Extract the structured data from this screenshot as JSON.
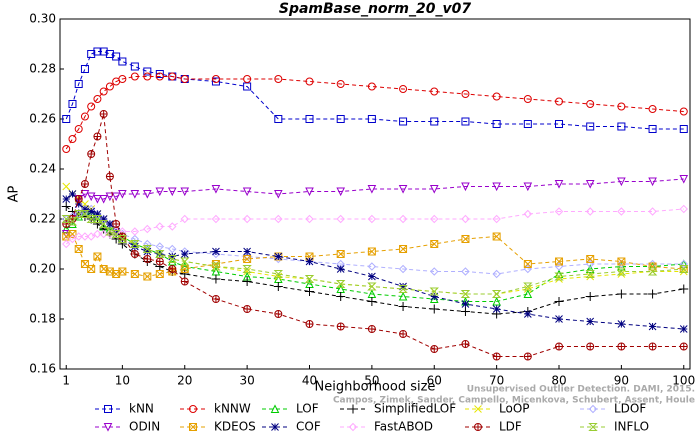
{
  "chart_data": {
    "type": "line",
    "title": "SpamBase_norm_20_v07",
    "xlabel": "Neighborhood size",
    "ylabel": "AP",
    "annotations": [
      "Unsupervised Outlier Detection. DAMI, 2015.",
      "Campos, Zimek, Sander, Campello, Micenkova, Schubert, Assent, Houle"
    ],
    "xlim": [
      0,
      101
    ],
    "ylim": [
      0.16,
      0.3
    ],
    "xticks": [
      1,
      10,
      20,
      30,
      40,
      50,
      60,
      70,
      80,
      90,
      100
    ],
    "yticks": [
      {
        "value": 0.16,
        "label": "0.16"
      },
      {
        "value": 0.18,
        "label": "0.18"
      },
      {
        "value": 0.2,
        "label": "0.20"
      },
      {
        "value": 0.22,
        "label": "0.22"
      },
      {
        "value": 0.24,
        "label": "0.24"
      },
      {
        "value": 0.26,
        "label": "0.26"
      },
      {
        "value": 0.28,
        "label": "0.28"
      },
      {
        "value": 0.3,
        "label": "0.30"
      }
    ],
    "legend": "bottom",
    "x": [
      1,
      2,
      3,
      4,
      5,
      6,
      7,
      8,
      9,
      10,
      12,
      14,
      16,
      18,
      20,
      25,
      30,
      35,
      40,
      45,
      50,
      55,
      60,
      65,
      70,
      75,
      80,
      85,
      90,
      95,
      100
    ],
    "series": [
      {
        "name": "kNN",
        "color": "#0000cc",
        "marker": "square",
        "values": [
          0.26,
          0.266,
          0.274,
          0.28,
          0.286,
          0.287,
          0.287,
          0.286,
          0.285,
          0.283,
          0.281,
          0.279,
          0.278,
          0.277,
          0.276,
          0.275,
          0.273,
          0.26,
          0.26,
          0.26,
          0.26,
          0.259,
          0.259,
          0.259,
          0.258,
          0.258,
          0.258,
          0.257,
          0.257,
          0.256,
          0.256
        ]
      },
      {
        "name": "kNNW",
        "color": "#dd0000",
        "marker": "circle",
        "values": [
          0.248,
          0.252,
          0.256,
          0.261,
          0.265,
          0.268,
          0.271,
          0.273,
          0.275,
          0.276,
          0.277,
          0.277,
          0.277,
          0.277,
          0.276,
          0.276,
          0.276,
          0.276,
          0.275,
          0.274,
          0.273,
          0.272,
          0.271,
          0.27,
          0.269,
          0.268,
          0.267,
          0.266,
          0.265,
          0.264,
          0.263
        ]
      },
      {
        "name": "LOF",
        "color": "#00cc00",
        "marker": "triangle",
        "values": [
          0.216,
          0.218,
          0.221,
          0.223,
          0.222,
          0.22,
          0.217,
          0.216,
          0.215,
          0.213,
          0.21,
          0.208,
          0.206,
          0.203,
          0.201,
          0.199,
          0.197,
          0.196,
          0.194,
          0.192,
          0.19,
          0.189,
          0.188,
          0.187,
          0.187,
          0.19,
          0.198,
          0.2,
          0.201,
          0.201,
          0.202
        ]
      },
      {
        "name": "SimplifiedLOF",
        "color": "#000000",
        "marker": "plus",
        "values": [
          0.225,
          0.223,
          0.222,
          0.221,
          0.22,
          0.218,
          0.216,
          0.214,
          0.212,
          0.21,
          0.206,
          0.203,
          0.201,
          0.199,
          0.198,
          0.196,
          0.195,
          0.193,
          0.191,
          0.189,
          0.187,
          0.185,
          0.184,
          0.183,
          0.182,
          0.183,
          0.187,
          0.189,
          0.19,
          0.19,
          0.192
        ]
      },
      {
        "name": "LoOP",
        "color": "#e6e600",
        "marker": "x",
        "values": [
          0.233,
          0.23,
          0.228,
          0.226,
          0.224,
          0.222,
          0.22,
          0.218,
          0.215,
          0.213,
          0.21,
          0.208,
          0.206,
          0.204,
          0.203,
          0.201,
          0.199,
          0.197,
          0.196,
          0.194,
          0.193,
          0.192,
          0.191,
          0.19,
          0.19,
          0.192,
          0.196,
          0.197,
          0.198,
          0.199,
          0.199
        ]
      },
      {
        "name": "LDOF",
        "color": "#b0b0ff",
        "marker": "diamond",
        "values": [
          0.22,
          0.221,
          0.222,
          0.223,
          0.224,
          0.222,
          0.22,
          0.218,
          0.216,
          0.214,
          0.212,
          0.21,
          0.209,
          0.208,
          0.207,
          0.206,
          0.205,
          0.204,
          0.203,
          0.202,
          0.201,
          0.2,
          0.199,
          0.199,
          0.198,
          0.2,
          0.201,
          0.202,
          0.202,
          0.202,
          0.202
        ]
      },
      {
        "name": "ODIN",
        "color": "#9900cc",
        "marker": "triangle-down",
        "values": [
          0.214,
          0.22,
          0.228,
          0.23,
          0.229,
          0.228,
          0.228,
          0.229,
          0.229,
          0.23,
          0.23,
          0.23,
          0.231,
          0.231,
          0.231,
          0.232,
          0.231,
          0.23,
          0.231,
          0.231,
          0.232,
          0.232,
          0.232,
          0.233,
          0.233,
          0.233,
          0.234,
          0.234,
          0.235,
          0.235,
          0.236
        ]
      },
      {
        "name": "KDEOS",
        "color": "#e6a000",
        "marker": "square-x",
        "values": [
          0.213,
          0.214,
          0.208,
          0.202,
          0.2,
          0.205,
          0.2,
          0.199,
          0.198,
          0.199,
          0.198,
          0.197,
          0.198,
          0.199,
          0.2,
          0.202,
          0.204,
          0.205,
          0.205,
          0.206,
          0.207,
          0.208,
          0.21,
          0.212,
          0.213,
          0.202,
          0.203,
          0.204,
          0.203,
          0.201,
          0.2
        ]
      },
      {
        "name": "COF",
        "color": "#000080",
        "marker": "asterisk",
        "values": [
          0.228,
          0.23,
          0.226,
          0.224,
          0.223,
          0.222,
          0.22,
          0.218,
          0.215,
          0.212,
          0.209,
          0.207,
          0.206,
          0.205,
          0.206,
          0.207,
          0.207,
          0.205,
          0.203,
          0.2,
          0.197,
          0.193,
          0.189,
          0.186,
          0.184,
          0.182,
          0.18,
          0.179,
          0.178,
          0.177,
          0.176
        ]
      },
      {
        "name": "FastABOD",
        "color": "#ffaaff",
        "marker": "diamond",
        "values": [
          0.21,
          0.212,
          0.213,
          0.213,
          0.213,
          0.214,
          0.214,
          0.214,
          0.215,
          0.215,
          0.215,
          0.216,
          0.217,
          0.217,
          0.22,
          0.22,
          0.22,
          0.22,
          0.22,
          0.22,
          0.22,
          0.22,
          0.22,
          0.22,
          0.22,
          0.222,
          0.223,
          0.223,
          0.223,
          0.223,
          0.224
        ]
      },
      {
        "name": "LDF",
        "color": "#a00000",
        "marker": "circle-plus",
        "values": [
          0.218,
          0.22,
          0.228,
          0.234,
          0.246,
          0.253,
          0.262,
          0.237,
          0.218,
          0.213,
          0.206,
          0.204,
          0.203,
          0.2,
          0.195,
          0.188,
          0.184,
          0.182,
          0.178,
          0.177,
          0.176,
          0.174,
          0.168,
          0.17,
          0.165,
          0.165,
          0.169,
          0.169,
          0.169,
          0.169,
          0.169
        ]
      },
      {
        "name": "INFLO",
        "color": "#99cc33",
        "marker": "hourglass",
        "values": [
          0.22,
          0.219,
          0.222,
          0.222,
          0.22,
          0.22,
          0.218,
          0.215,
          0.214,
          0.212,
          0.21,
          0.208,
          0.206,
          0.204,
          0.203,
          0.201,
          0.2,
          0.198,
          0.196,
          0.194,
          0.193,
          0.192,
          0.191,
          0.19,
          0.19,
          0.193,
          0.197,
          0.198,
          0.199,
          0.199,
          0.2
        ]
      }
    ]
  }
}
